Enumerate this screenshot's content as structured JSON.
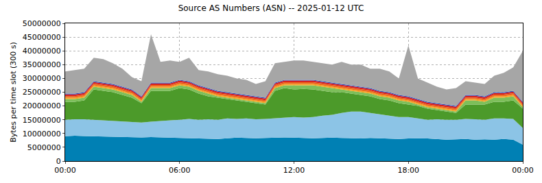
{
  "chart_data": {
    "type": "area",
    "title": "Source AS Numbers (ASN) -- 2025-01-12 UTC",
    "y_label": "Bytes per time slot (300 s)",
    "stacked": true,
    "grid": true,
    "categories": [
      "00:00",
      null,
      null,
      null,
      null,
      null,
      null,
      null,
      null,
      null,
      null,
      null,
      "06:00",
      null,
      null,
      null,
      null,
      null,
      null,
      null,
      null,
      null,
      null,
      null,
      "12:00",
      null,
      null,
      null,
      null,
      null,
      null,
      null,
      null,
      null,
      null,
      null,
      "18:00",
      null,
      null,
      null,
      null,
      null,
      null,
      null,
      null,
      null,
      null,
      null,
      "00:00"
    ],
    "ylim": [
      0,
      50000000
    ],
    "yticks": [
      0,
      5000000,
      10000000,
      15000000,
      20000000,
      25000000,
      30000000,
      35000000,
      40000000,
      45000000,
      50000000
    ],
    "series": [
      {
        "color": "#0080b4",
        "values": [
          9000000,
          9200000,
          9100000,
          9000000,
          8900000,
          8800000,
          8800000,
          8700000,
          8600000,
          8700000,
          8600000,
          8500000,
          8500000,
          8400000,
          8300000,
          8200000,
          8000000,
          8300000,
          8500000,
          8400000,
          8300000,
          8400000,
          8500000,
          8600000,
          8500000,
          8400000,
          8300000,
          8400000,
          8500000,
          8400000,
          8300000,
          8200000,
          8400000,
          8300000,
          8100000,
          8000000,
          8200000,
          8300000,
          8200000,
          8000000,
          7800000,
          7900000,
          8000000,
          7800000,
          7900000,
          7800000,
          8000000,
          7800000,
          6000000
        ]
      },
      {
        "color": "#8cc4e6",
        "values": [
          6000000,
          6000000,
          6100000,
          6000000,
          5900000,
          5900000,
          5700000,
          5600000,
          5400000,
          5600000,
          5900000,
          6300000,
          6500000,
          6900000,
          6700000,
          7000000,
          7000000,
          7200000,
          6800000,
          7100000,
          6900000,
          6900000,
          7000000,
          7200000,
          7500000,
          7400000,
          7700000,
          8100000,
          8300000,
          9100000,
          9700000,
          9800000,
          9100000,
          8700000,
          8400000,
          8000000,
          7800000,
          7200000,
          6800000,
          7200000,
          7200000,
          7100000,
          7300000,
          7400000,
          7100000,
          7700000,
          7500000,
          7500000,
          6000000
        ]
      },
      {
        "color": "#4c9a2a",
        "values": [
          6500000,
          6300000,
          6800000,
          11000000,
          10700000,
          10300000,
          9500000,
          8700000,
          7000000,
          11200000,
          11000000,
          10700000,
          11500000,
          10700000,
          9500000,
          8300000,
          8000000,
          7000000,
          6700000,
          6000000,
          5800000,
          5200000,
          10000000,
          10700000,
          10000000,
          10400000,
          10000000,
          9000000,
          8200000,
          7500000,
          6500000,
          6000000,
          6000000,
          5500000,
          5500000,
          5000000,
          4500000,
          4500000,
          4000000,
          3300000,
          3000000,
          2500000,
          5200000,
          5300000,
          5500000,
          6000000,
          6000000,
          6700000,
          7000000
        ]
      },
      {
        "color": "#7dbf5a",
        "values": [
          1000000,
          1000000,
          1000000,
          1000000,
          1000000,
          1000000,
          1000000,
          1000000,
          500000,
          1000000,
          1000000,
          1000000,
          1000000,
          1000000,
          1000000,
          1000000,
          500000,
          500000,
          500000,
          500000,
          500000,
          500000,
          1000000,
          1000000,
          1500000,
          1300000,
          1500000,
          1500000,
          1500000,
          1000000,
          1000000,
          1000000,
          1000000,
          1000000,
          1000000,
          1000000,
          1000000,
          500000,
          500000,
          500000,
          500000,
          500000,
          1500000,
          1500000,
          1000000,
          1500000,
          1500000,
          1500000,
          500000
        ]
      },
      {
        "color": "#f5a623",
        "values": [
          500000,
          500000,
          500000,
          500000,
          500000,
          500000,
          500000,
          500000,
          500000,
          500000,
          500000,
          500000,
          500000,
          500000,
          500000,
          500000,
          500000,
          500000,
          500000,
          500000,
          500000,
          500000,
          500000,
          500000,
          500000,
          500000,
          500000,
          500000,
          500000,
          500000,
          500000,
          500000,
          500000,
          500000,
          500000,
          500000,
          500000,
          500000,
          500000,
          500000,
          500000,
          500000,
          500000,
          500000,
          500000,
          500000,
          500000,
          500000,
          500000
        ]
      },
      {
        "color": "#ee6a1a",
        "values": [
          600000,
          600000,
          600000,
          600000,
          600000,
          600000,
          600000,
          600000,
          600000,
          600000,
          600000,
          600000,
          600000,
          600000,
          600000,
          600000,
          600000,
          600000,
          600000,
          600000,
          600000,
          600000,
          600000,
          600000,
          600000,
          600000,
          600000,
          600000,
          600000,
          600000,
          600000,
          600000,
          600000,
          600000,
          600000,
          600000,
          600000,
          600000,
          600000,
          600000,
          600000,
          600000,
          600000,
          600000,
          600000,
          600000,
          600000,
          600000,
          600000
        ]
      },
      {
        "color": "#d62020",
        "values": [
          600000,
          600000,
          600000,
          600000,
          600000,
          600000,
          600000,
          600000,
          600000,
          600000,
          600000,
          600000,
          600000,
          600000,
          600000,
          600000,
          600000,
          600000,
          600000,
          600000,
          600000,
          600000,
          600000,
          600000,
          600000,
          600000,
          600000,
          600000,
          600000,
          600000,
          600000,
          600000,
          600000,
          600000,
          600000,
          600000,
          600000,
          600000,
          600000,
          600000,
          600000,
          600000,
          600000,
          600000,
          600000,
          600000,
          600000,
          600000,
          600000
        ]
      },
      {
        "color": "#3050c0",
        "values": [
          300000,
          300000,
          300000,
          300000,
          300000,
          300000,
          300000,
          300000,
          300000,
          300000,
          300000,
          300000,
          300000,
          300000,
          300000,
          300000,
          300000,
          300000,
          300000,
          300000,
          300000,
          300000,
          300000,
          300000,
          300000,
          300000,
          300000,
          300000,
          300000,
          300000,
          300000,
          300000,
          300000,
          300000,
          300000,
          300000,
          300000,
          300000,
          300000,
          300000,
          300000,
          300000,
          300000,
          300000,
          300000,
          300000,
          300000,
          300000,
          300000
        ]
      },
      {
        "color": "#a6a6a6",
        "values": [
          8000000,
          8500000,
          8500000,
          8500000,
          8500000,
          7500000,
          6500000,
          4500000,
          5500000,
          17500000,
          7500000,
          8000000,
          6500000,
          8500000,
          5500000,
          6000000,
          6000000,
          6000000,
          5500000,
          5500000,
          4500000,
          6000000,
          7000000,
          6500000,
          7000000,
          7000000,
          6500000,
          6500000,
          6500000,
          8000000,
          7500000,
          8000000,
          7000000,
          8000000,
          7500000,
          6000000,
          18500000,
          7500000,
          7000000,
          6000000,
          5500000,
          6500000,
          5000000,
          4500000,
          4500000,
          6000000,
          7000000,
          8500000,
          18500000
        ]
      }
    ]
  }
}
